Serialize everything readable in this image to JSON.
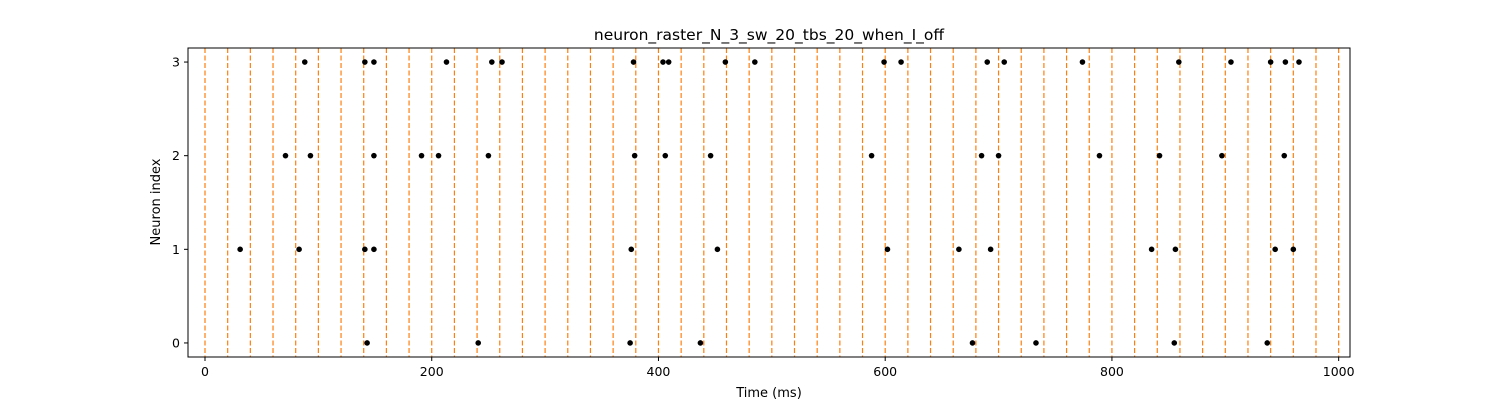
{
  "chart_data": {
    "type": "scatter",
    "title": "neuron_raster_N_3_sw_20_tbs_20_when_I_off",
    "xlabel": "Time (ms)",
    "ylabel": "Neuron index",
    "xlim": [
      -15,
      1010
    ],
    "ylim": [
      -0.15,
      3.15
    ],
    "xticks": [
      0,
      200,
      400,
      600,
      800,
      1000
    ],
    "yticks": [
      0,
      1,
      2,
      3
    ],
    "grid": false,
    "legend": "none",
    "marker_color": "#000000",
    "vline_color": "#ff7f0e",
    "vlines": [
      0,
      20,
      40,
      60,
      80,
      100,
      120,
      140,
      160,
      180,
      200,
      220,
      240,
      260,
      280,
      300,
      320,
      340,
      360,
      380,
      400,
      420,
      440,
      460,
      480,
      500,
      520,
      540,
      560,
      580,
      600,
      620,
      640,
      660,
      680,
      700,
      720,
      740,
      760,
      780,
      800,
      820,
      840,
      860,
      880,
      900,
      920,
      940,
      960,
      980,
      1000
    ],
    "spikes": [
      {
        "neuron": 0,
        "times": [
          143,
          241,
          375,
          437,
          677,
          733,
          855,
          937
        ]
      },
      {
        "neuron": 1,
        "times": [
          31,
          83,
          141,
          149,
          376,
          452,
          602,
          665,
          693,
          835,
          856,
          944,
          960
        ]
      },
      {
        "neuron": 2,
        "times": [
          71,
          93,
          149,
          191,
          206,
          250,
          379,
          406,
          446,
          588,
          685,
          700,
          789,
          842,
          897,
          952
        ]
      },
      {
        "neuron": 3,
        "times": [
          88,
          141,
          149,
          213,
          253,
          262,
          378,
          404,
          409,
          459,
          485,
          599,
          614,
          690,
          705,
          774,
          859,
          905,
          940,
          953,
          965
        ]
      }
    ]
  }
}
